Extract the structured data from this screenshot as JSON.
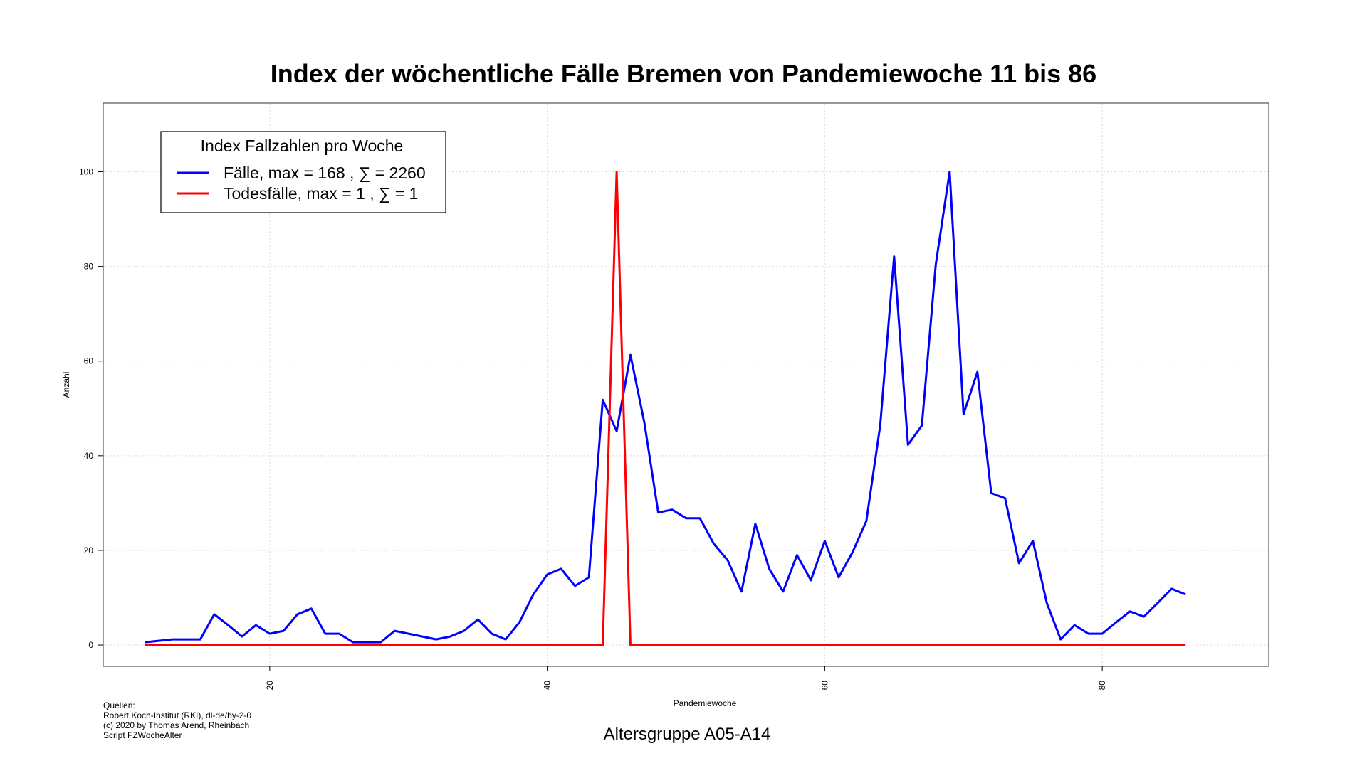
{
  "chart_data": {
    "type": "line",
    "title": "Index der wöchentliche Fälle Bremen von Pandemiewoche 11 bis 86",
    "xlabel": "Pandemiewoche",
    "ylabel": "Anzahl",
    "subtitle": "Altersgruppe A05-A14",
    "xlim": [
      8,
      92
    ],
    "ylim": [
      -4.5,
      114.5
    ],
    "x_ticks": [
      20,
      40,
      60,
      80
    ],
    "y_ticks": [
      0,
      20,
      40,
      60,
      80,
      100
    ],
    "grid": true,
    "legend": {
      "title": "Index Fallzahlen pro Woche",
      "position": "top-left",
      "entries": [
        {
          "label": "Fälle, max = 168 ,  ∑  = 2260",
          "color": "#0000ff"
        },
        {
          "label": "Todesfälle, max = 1 ,  ∑  = 1",
          "color": "#ff0000"
        }
      ]
    },
    "x": [
      11,
      12,
      13,
      14,
      15,
      16,
      17,
      18,
      19,
      20,
      21,
      22,
      23,
      24,
      25,
      26,
      27,
      28,
      29,
      30,
      31,
      32,
      33,
      34,
      35,
      36,
      37,
      38,
      39,
      40,
      41,
      42,
      43,
      44,
      45,
      46,
      47,
      48,
      49,
      50,
      51,
      52,
      53,
      54,
      55,
      56,
      57,
      58,
      59,
      60,
      61,
      62,
      63,
      64,
      65,
      66,
      67,
      68,
      69,
      70,
      71,
      72,
      73,
      74,
      75,
      76,
      77,
      78,
      79,
      80,
      81,
      82,
      83,
      84,
      85,
      86
    ],
    "series": [
      {
        "name": "Fälle",
        "color": "#0000ff",
        "values": [
          0.6,
          0.9,
          1.2,
          1.2,
          1.2,
          6.5,
          4.2,
          1.8,
          4.2,
          2.4,
          3.0,
          6.5,
          7.7,
          2.4,
          2.4,
          0.6,
          0.6,
          0.6,
          3.0,
          2.4,
          1.8,
          1.2,
          1.8,
          3.0,
          5.4,
          2.4,
          1.2,
          4.8,
          10.7,
          14.9,
          16.1,
          12.5,
          14.3,
          51.8,
          45.2,
          61.3,
          47.0,
          28.0,
          28.6,
          26.8,
          26.8,
          21.4,
          17.9,
          11.3,
          25.6,
          16.1,
          11.3,
          19.0,
          13.7,
          22.0,
          14.3,
          19.6,
          26.2,
          46.4,
          82.1,
          42.3,
          46.4,
          80.4,
          100.0,
          48.8,
          57.7,
          32.1,
          31.0,
          17.3,
          22.0,
          8.9,
          1.2,
          4.2,
          2.4,
          2.4,
          4.8,
          7.1,
          6.0,
          8.9,
          11.9,
          10.7
        ]
      },
      {
        "name": "Todesfälle",
        "color": "#ff0000",
        "values": [
          0,
          0,
          0,
          0,
          0,
          0,
          0,
          0,
          0,
          0,
          0,
          0,
          0,
          0,
          0,
          0,
          0,
          0,
          0,
          0,
          0,
          0,
          0,
          0,
          0,
          0,
          0,
          0,
          0,
          0,
          0,
          0,
          0,
          0,
          100,
          0,
          0,
          0,
          0,
          0,
          0,
          0,
          0,
          0,
          0,
          0,
          0,
          0,
          0,
          0,
          0,
          0,
          0,
          0,
          0,
          0,
          0,
          0,
          0,
          0,
          0,
          0,
          0,
          0,
          0,
          0,
          0,
          0,
          0,
          0,
          0,
          0,
          0,
          0,
          0,
          0
        ]
      }
    ]
  },
  "sources": [
    "Quellen:",
    "Robert Koch-Institut (RKI), dl-de/by-2-0",
    "(c) 2020 by Thomas Arend, Rheinbach",
    "Script FZWocheAlter"
  ]
}
